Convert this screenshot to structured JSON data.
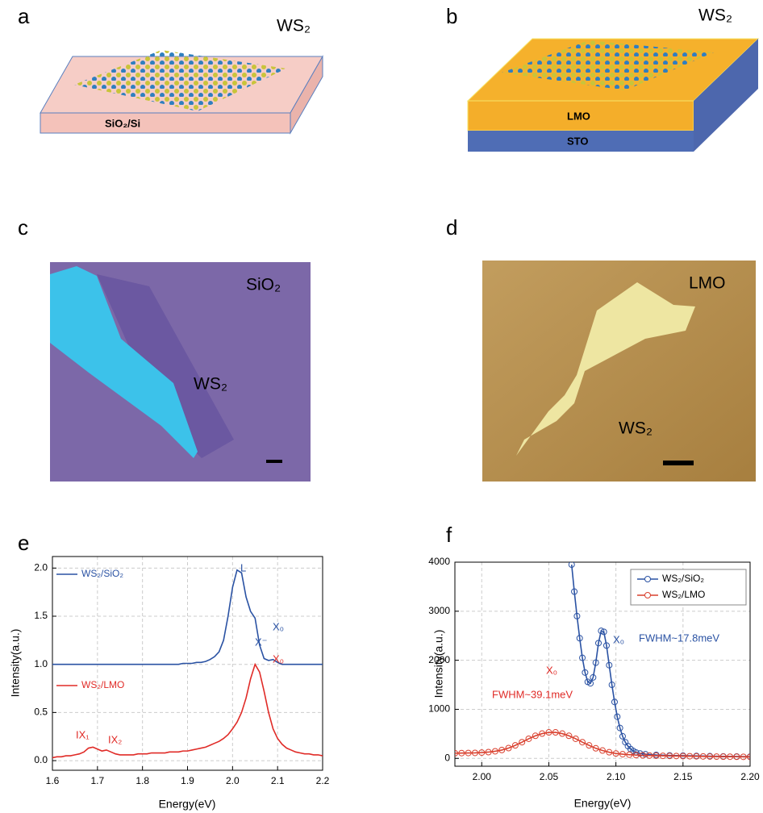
{
  "panels": {
    "a": {
      "label": "a",
      "material": "WS₂",
      "substrate": "SiO₂/Si"
    },
    "b": {
      "label": "b",
      "material": "WS₂",
      "layers": [
        "LMO",
        "STO"
      ]
    },
    "c": {
      "label": "c",
      "substrate": "SiO₂",
      "flake": "WS₂"
    },
    "d": {
      "label": "d",
      "substrate": "LMO",
      "flake": "WS₂"
    }
  },
  "chart_data": [
    {
      "type": "line",
      "label": "e",
      "xlabel": "Energy(eV)",
      "ylabel": "Intensity(a.u.)",
      "xlim": [
        1.6,
        2.2
      ],
      "ylim": [
        -0.1,
        2.12
      ],
      "xticks": [
        1.6,
        1.7,
        1.8,
        1.9,
        {
          "value": 2,
          "label": "2.0"
        },
        2.1,
        2.2
      ],
      "yticks": [
        {
          "value": 0,
          "label": "0.0"
        },
        0.5,
        {
          "value": 1,
          "label": "1.0"
        },
        1.5,
        {
          "value": 2,
          "label": "2.0"
        }
      ],
      "grid": true,
      "legend": "inline",
      "markers": false,
      "x": [
        1.6,
        1.61,
        1.62,
        1.63,
        1.64,
        1.65,
        1.66,
        1.67,
        1.68,
        1.69,
        1.7,
        1.71,
        1.72,
        1.73,
        1.74,
        1.75,
        1.76,
        1.77,
        1.78,
        1.79,
        1.8,
        1.81,
        1.82,
        1.83,
        1.84,
        1.85,
        1.86,
        1.87,
        1.88,
        1.89,
        1.9,
        1.91,
        1.92,
        1.93,
        1.94,
        1.95,
        1.96,
        1.97,
        1.98,
        1.99,
        2.0,
        2.01,
        2.02,
        2.03,
        2.04,
        2.05,
        2.06,
        2.07,
        2.08,
        2.09,
        2.1,
        2.11,
        2.12,
        2.13,
        2.14,
        2.15,
        2.16,
        2.17,
        2.18,
        2.19,
        2.2
      ],
      "series": [
        {
          "name": "WS₂/SiO₂",
          "color": "#2a52a3",
          "values": [
            1.0,
            1.0,
            1.0,
            1.0,
            1.0,
            1.0,
            1.0,
            1.0,
            1.0,
            1.0,
            1.0,
            1.0,
            1.0,
            1.0,
            1.0,
            1.0,
            1.0,
            1.0,
            1.0,
            1.0,
            1.0,
            1.0,
            1.0,
            1.0,
            1.0,
            1.0,
            1.0,
            1.0,
            1.0,
            1.01,
            1.01,
            1.01,
            1.02,
            1.02,
            1.03,
            1.05,
            1.08,
            1.13,
            1.25,
            1.5,
            1.8,
            1.98,
            1.95,
            1.7,
            1.55,
            1.48,
            1.2,
            1.06,
            1.04,
            1.05,
            1.02,
            1.0,
            1.0,
            1.0,
            1.0,
            1.0,
            1.0,
            1.0,
            1.0,
            1.0,
            1.0
          ]
        },
        {
          "name": "WS₂/LMO",
          "color": "#e02b27",
          "values": [
            0.03,
            0.04,
            0.04,
            0.05,
            0.05,
            0.06,
            0.07,
            0.09,
            0.13,
            0.14,
            0.12,
            0.1,
            0.11,
            0.09,
            0.07,
            0.06,
            0.06,
            0.06,
            0.06,
            0.07,
            0.07,
            0.07,
            0.08,
            0.08,
            0.08,
            0.08,
            0.09,
            0.09,
            0.09,
            0.1,
            0.1,
            0.11,
            0.12,
            0.13,
            0.14,
            0.16,
            0.18,
            0.2,
            0.23,
            0.27,
            0.33,
            0.4,
            0.5,
            0.65,
            0.85,
            1.0,
            0.92,
            0.72,
            0.5,
            0.33,
            0.23,
            0.17,
            0.13,
            0.11,
            0.09,
            0.08,
            0.07,
            0.07,
            0.06,
            0.06,
            0.05
          ]
        }
      ],
      "annotations": [
        {
          "text": "L",
          "color": "#2a52a3"
        },
        {
          "text": "X⁻",
          "color": "#2a52a3"
        },
        {
          "text": "X₀",
          "color": "#2a52a3"
        },
        {
          "text": "X₀",
          "color": "#e02b27"
        },
        {
          "text": "IX₁",
          "color": "#e02b27"
        },
        {
          "text": "IX₂",
          "color": "#e02b27"
        }
      ]
    },
    {
      "type": "line",
      "label": "f",
      "xlabel": "Energy(eV)",
      "ylabel": "Intensity(a.u.)",
      "xlim": [
        1.98,
        2.2
      ],
      "ylim": [
        -160,
        4000
      ],
      "xticks": [
        {
          "value": 2,
          "label": "2.00"
        },
        2.05,
        {
          "value": 2.1,
          "label": "2.10"
        },
        2.15,
        {
          "value": 2.2,
          "label": "2.20"
        }
      ],
      "yticks": [
        0,
        1000,
        2000,
        3000,
        4000
      ],
      "grid": true,
      "legend": "upper right",
      "markers": true,
      "series": [
        {
          "name": "WS₂/SiO₂",
          "color": "#2a52a3",
          "x": [
            2.067,
            2.069,
            2.071,
            2.073,
            2.075,
            2.077,
            2.079,
            2.081,
            2.083,
            2.085,
            2.087,
            2.089,
            2.091,
            2.093,
            2.095,
            2.097,
            2.099,
            2.101,
            2.103,
            2.105,
            2.107,
            2.109,
            2.111,
            2.113,
            2.115,
            2.118,
            2.122,
            2.13,
            2.14,
            2.15,
            2.16,
            2.17,
            2.18,
            2.19,
            2.2
          ],
          "values": [
            3950,
            3400,
            2900,
            2450,
            2050,
            1750,
            1560,
            1530,
            1650,
            1950,
            2350,
            2600,
            2580,
            2300,
            1900,
            1500,
            1150,
            850,
            620,
            450,
            330,
            250,
            190,
            150,
            120,
            100,
            85,
            70,
            60,
            55,
            50,
            45,
            40,
            38,
            35
          ]
        },
        {
          "name": "WS₂/LMO",
          "color": "#d9412f",
          "x": [
            1.98,
            1.985,
            1.99,
            1.995,
            2.0,
            2.005,
            2.01,
            2.015,
            2.02,
            2.025,
            2.03,
            2.035,
            2.04,
            2.045,
            2.05,
            2.055,
            2.06,
            2.065,
            2.07,
            2.075,
            2.08,
            2.085,
            2.09,
            2.095,
            2.1,
            2.105,
            2.11,
            2.115,
            2.12,
            2.125,
            2.13,
            2.135,
            2.14,
            2.145,
            2.15,
            2.155,
            2.16,
            2.165,
            2.17,
            2.175,
            2.18,
            2.185,
            2.19,
            2.195,
            2.2
          ],
          "values": [
            105,
            108,
            110,
            112,
            118,
            128,
            145,
            170,
            210,
            265,
            330,
            400,
            460,
            505,
            530,
            530,
            505,
            460,
            400,
            330,
            265,
            205,
            160,
            125,
            100,
            85,
            75,
            68,
            62,
            58,
            55,
            52,
            50,
            48,
            46,
            44,
            42,
            40,
            38,
            36,
            35,
            34,
            33,
            32,
            30
          ]
        }
      ],
      "annotations": [
        {
          "text": "X₀",
          "color": "#2a52a3"
        },
        {
          "text": "FWHM~17.8meV",
          "color": "#2a52a3"
        },
        {
          "text": "FWHM~39.1meV",
          "color": "#e02b27"
        },
        {
          "text": "X₀",
          "color": "#e02b27"
        }
      ]
    }
  ]
}
